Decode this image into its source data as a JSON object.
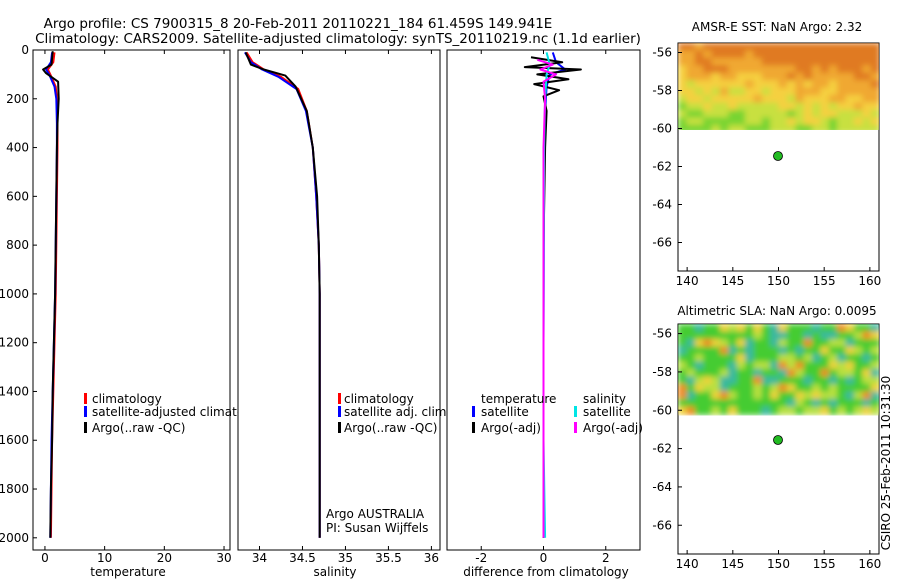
{
  "figure": {
    "title_line1": "Argo profile: CS 7900315_8 20-Feb-2011 20110221_184 61.459S 149.941E",
    "title_line2": "Climatology: CARS2009. Satellite-adjusted climatology: synTS_20110219.nc (1.1d earlier)",
    "footer": "CSIRO 25-Feb-2011 10:31:30",
    "argo_label": "Argo AUSTRALIA",
    "pi_label": "PI: Susan Wijffels"
  },
  "colors": {
    "climatology": "#ff0000",
    "satellite": "#0000ff",
    "argo": "#000000",
    "sal_satellite": "#00e5e5",
    "sal_argo": "#ff00ff",
    "float_marker": "#22bb22"
  },
  "chart_data": [
    {
      "id": "temperature",
      "type": "line",
      "xlabel": "temperature",
      "ylabel": "",
      "xlim": [
        -2,
        31
      ],
      "ylim": [
        2050,
        0
      ],
      "x_ticks": [
        0,
        10,
        20,
        30
      ],
      "y_ticks": [
        0,
        200,
        400,
        600,
        800,
        1000,
        1200,
        1400,
        1600,
        1800,
        2000
      ],
      "legend": [
        "climatology",
        "satellite-adjusted climatolog",
        "Argo(..raw -QC)"
      ],
      "series": [
        {
          "name": "climatology",
          "color": "#ff0000",
          "points": [
            [
              1.6,
              10
            ],
            [
              1.4,
              50
            ],
            [
              0.5,
              80
            ],
            [
              0.9,
              100
            ],
            [
              1.8,
              150
            ],
            [
              2.0,
              200
            ],
            [
              2.1,
              300
            ],
            [
              2.1,
              400
            ],
            [
              2.0,
              600
            ],
            [
              1.9,
              800
            ],
            [
              1.8,
              1000
            ],
            [
              1.6,
              1200
            ],
            [
              1.4,
              1400
            ],
            [
              1.2,
              1600
            ],
            [
              1.1,
              1800
            ],
            [
              1.0,
              2000
            ]
          ]
        },
        {
          "name": "satellite-adjusted climatolog",
          "color": "#0000ff",
          "points": [
            [
              1.2,
              10
            ],
            [
              1.0,
              50
            ],
            [
              0.2,
              80
            ],
            [
              0.7,
              100
            ],
            [
              1.6,
              150
            ],
            [
              1.9,
              200
            ],
            [
              2.0,
              300
            ],
            [
              2.0,
              400
            ],
            [
              1.9,
              600
            ],
            [
              1.8,
              800
            ],
            [
              1.7,
              1000
            ],
            [
              1.5,
              1200
            ],
            [
              1.3,
              1400
            ],
            [
              1.1,
              1600
            ],
            [
              1.0,
              1800
            ],
            [
              0.9,
              2000
            ]
          ]
        },
        {
          "name": "Argo(..raw -QC)",
          "color": "#000000",
          "points": [
            [
              1.3,
              5
            ],
            [
              1.1,
              60
            ],
            [
              -0.3,
              80
            ],
            [
              0.2,
              95
            ],
            [
              2.2,
              130
            ],
            [
              2.3,
              200
            ],
            [
              2.1,
              300
            ],
            [
              2.0,
              400
            ],
            [
              1.9,
              600
            ],
            [
              1.8,
              800
            ],
            [
              1.7,
              1000
            ],
            [
              1.5,
              1200
            ],
            [
              1.3,
              1400
            ],
            [
              1.2,
              1600
            ],
            [
              1.0,
              1800
            ],
            [
              0.9,
              2000
            ]
          ]
        }
      ]
    },
    {
      "id": "salinity",
      "type": "line",
      "xlabel": "salinity",
      "ylabel": "",
      "xlim": [
        33.75,
        36.1
      ],
      "ylim": [
        2050,
        0
      ],
      "x_ticks": [
        34,
        34.5,
        35,
        35.5,
        36
      ],
      "legend": [
        "climatology",
        "satellite adj. clim.",
        "Argo(..raw -QC)"
      ],
      "series": [
        {
          "name": "climatology",
          "color": "#ff0000",
          "points": [
            [
              33.85,
              10
            ],
            [
              33.92,
              50
            ],
            [
              34.05,
              80
            ],
            [
              34.25,
              110
            ],
            [
              34.45,
              160
            ],
            [
              34.55,
              250
            ],
            [
              34.62,
              400
            ],
            [
              34.66,
              600
            ],
            [
              34.69,
              800
            ],
            [
              34.7,
              1000
            ],
            [
              34.7,
              1400
            ],
            [
              34.7,
              2000
            ]
          ]
        },
        {
          "name": "satellite adj. clim.",
          "color": "#0000ff",
          "points": [
            [
              33.83,
              10
            ],
            [
              33.9,
              50
            ],
            [
              34.03,
              80
            ],
            [
              34.22,
              110
            ],
            [
              34.43,
              160
            ],
            [
              34.54,
              250
            ],
            [
              34.62,
              400
            ],
            [
              34.66,
              600
            ],
            [
              34.69,
              800
            ],
            [
              34.7,
              1000
            ],
            [
              34.7,
              1400
            ],
            [
              34.7,
              2000
            ]
          ]
        },
        {
          "name": "Argo(..raw -QC)",
          "color": "#000000",
          "points": [
            [
              33.84,
              10
            ],
            [
              33.9,
              60
            ],
            [
              34.05,
              80
            ],
            [
              34.3,
              105
            ],
            [
              34.42,
              150
            ],
            [
              34.55,
              250
            ],
            [
              34.62,
              400
            ],
            [
              34.67,
              600
            ],
            [
              34.69,
              800
            ],
            [
              34.7,
              1000
            ],
            [
              34.7,
              1400
            ],
            [
              34.7,
              2000
            ]
          ]
        }
      ]
    },
    {
      "id": "difference",
      "type": "line",
      "xlabel": "difference from climatology",
      "ylabel": "",
      "xlim": [
        -3.1,
        3.1
      ],
      "ylim": [
        2050,
        0
      ],
      "x_ticks": [
        -2,
        0,
        2
      ],
      "legend_titles": [
        "temperature",
        "salinity"
      ],
      "legend": [
        "satellite",
        "Argo(-adj)",
        "satellite",
        "Argo(-adj)"
      ],
      "series": [
        {
          "name": "satellite",
          "group": "temperature",
          "color": "#0000ff",
          "points": [
            [
              0.3,
              10
            ],
            [
              0.4,
              50
            ],
            [
              0.7,
              80
            ],
            [
              0.2,
              100
            ],
            [
              0.1,
              150
            ],
            [
              0.05,
              250
            ],
            [
              0.02,
              400
            ],
            [
              0.01,
              800
            ],
            [
              0.0,
              1200
            ],
            [
              0.0,
              1600
            ],
            [
              0.0,
              2000
            ]
          ]
        },
        {
          "name": "Argo(-adj)",
          "group": "temperature",
          "color": "#000000",
          "points": [
            [
              -0.4,
              30
            ],
            [
              0.6,
              50
            ],
            [
              -0.6,
              70
            ],
            [
              1.2,
              80
            ],
            [
              -0.2,
              100
            ],
            [
              0.8,
              120
            ],
            [
              -0.3,
              140
            ],
            [
              0.5,
              165
            ],
            [
              0.0,
              190
            ],
            [
              0.1,
              250
            ],
            [
              0.05,
              400
            ],
            [
              0.0,
              800
            ],
            [
              0.0,
              1400
            ],
            [
              0.0,
              2000
            ]
          ]
        },
        {
          "name": "satellite",
          "group": "salinity",
          "color": "#00e5e5",
          "points": [
            [
              0.1,
              10
            ],
            [
              0.2,
              60
            ],
            [
              0.1,
              100
            ],
            [
              0.05,
              200
            ],
            [
              0.02,
              400
            ],
            [
              0.01,
              800
            ],
            [
              0.0,
              1200
            ],
            [
              0.0,
              1600
            ],
            [
              0.05,
              2000
            ]
          ]
        },
        {
          "name": "Argo(-adj)",
          "group": "salinity",
          "color": "#ff00ff",
          "points": [
            [
              -0.2,
              40
            ],
            [
              0.3,
              60
            ],
            [
              -0.1,
              80
            ],
            [
              0.4,
              100
            ],
            [
              0.0,
              130
            ],
            [
              0.05,
              200
            ],
            [
              0.0,
              400
            ],
            [
              0.0,
              800
            ],
            [
              0.0,
              2000
            ]
          ]
        }
      ]
    },
    {
      "id": "sst_map",
      "type": "heatmap",
      "title": "AMSR-E SST: NaN Argo: 2.32",
      "xlim": [
        139,
        161
      ],
      "ylim": [
        -67.5,
        -55.5
      ],
      "x_ticks": [
        140,
        145,
        150,
        155,
        160
      ],
      "y_ticks": [
        -56,
        -58,
        -60,
        -62,
        -64,
        -66
      ],
      "data_extent": {
        "lon": [
          139,
          161
        ],
        "lat": [
          -60.2,
          -55.5
        ]
      },
      "float_position": {
        "lon": 149.941,
        "lat": -61.459
      }
    },
    {
      "id": "sla_map",
      "type": "heatmap",
      "title": "Altimetric SLA: NaN Argo: 0.0095",
      "xlim": [
        139,
        161
      ],
      "ylim": [
        -67.5,
        -55.5
      ],
      "x_ticks": [
        140,
        145,
        150,
        155,
        160
      ],
      "y_ticks": [
        -56,
        -58,
        -60,
        -62,
        -64,
        -66
      ],
      "data_extent": {
        "lon": [
          139,
          161
        ],
        "lat": [
          -60.2,
          -55.5
        ]
      },
      "float_position": {
        "lon": 149.941,
        "lat": -61.459
      }
    }
  ]
}
